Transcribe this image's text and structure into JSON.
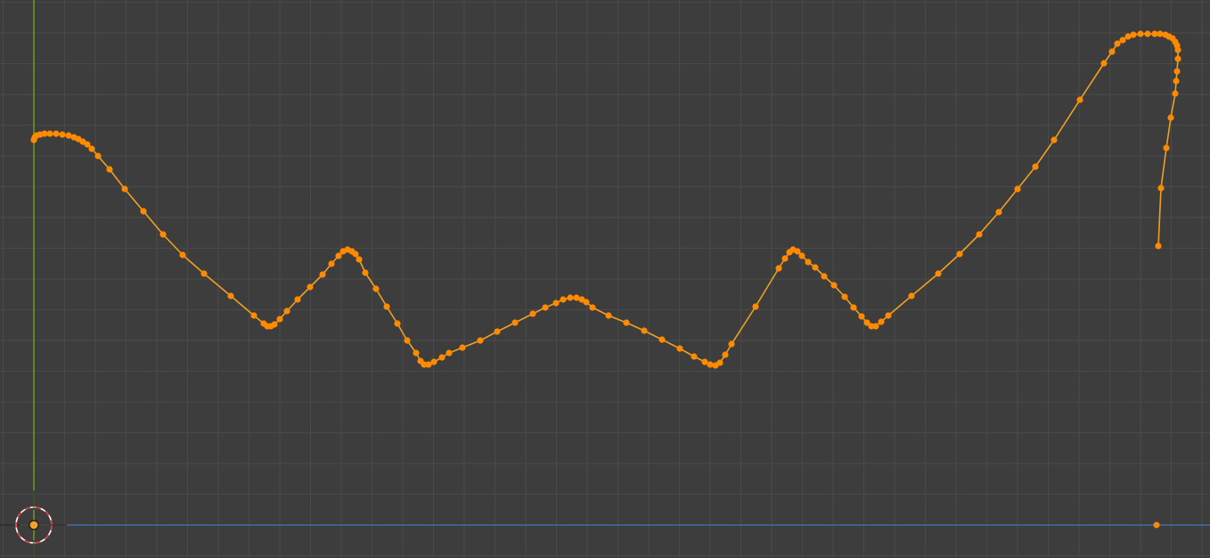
{
  "viewport": {
    "type": "3d-viewport-orthographic",
    "background_color": "#3d3d3d",
    "grid_color": "#4a4a4a",
    "grid_minor_color": "#444444"
  },
  "axes": {
    "vertical_axis_color": "#6c9b1e",
    "horizontal_axis_color": "#3d6fa6"
  },
  "cursor_3d": {
    "icon": "3d-cursor-icon",
    "ring_colors": [
      "#ffffff",
      "#e0323c"
    ],
    "center_color": "#f2a12b"
  },
  "curve": {
    "icon": "bezier-curve",
    "line_color": "#f0a020",
    "point_color": "#ff8a00",
    "selected": true
  },
  "origin_point": {
    "color": "#ff8a00"
  }
}
